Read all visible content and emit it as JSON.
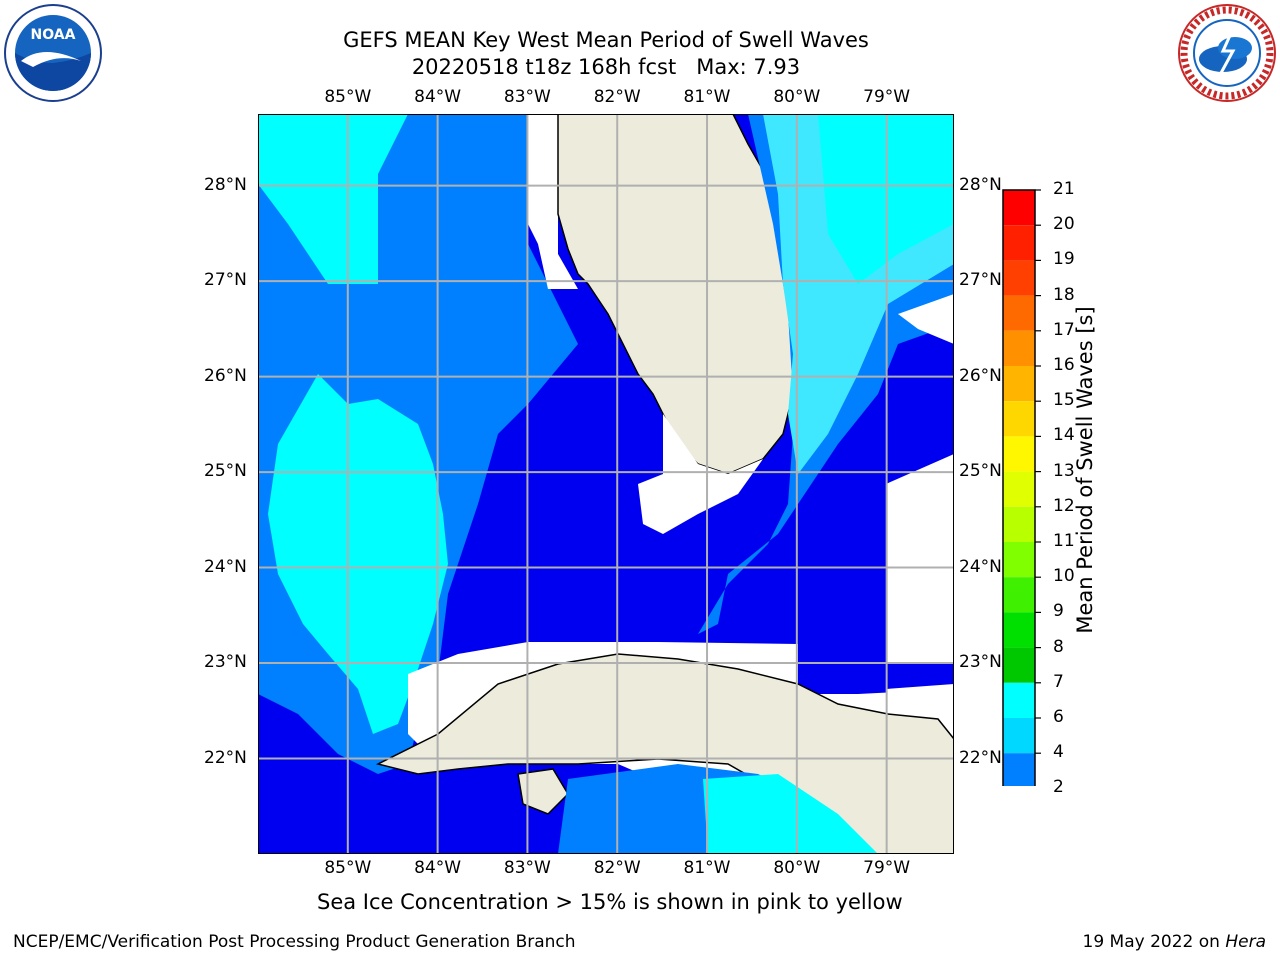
{
  "title": {
    "line1": "GEFS MEAN Key West Mean Period of Swell Waves",
    "line2": "20220518 t18z 168h fcst   Max: 7.93"
  },
  "logos": {
    "left": "NOAA",
    "left_ring_top": "NATIONAL OCEANIC AND ATMOSPHERIC ADMINISTRATION",
    "left_ring_bottom": "U.S. DEPARTMENT OF COMMERCE",
    "right_ring": "NATIONAL WEATHER SERVICE"
  },
  "map": {
    "lon_labels": [
      "85°W",
      "84°W",
      "83°W",
      "82°W",
      "81°W",
      "80°W",
      "79°W"
    ],
    "lat_labels": [
      "28°N",
      "27°N",
      "26°N",
      "25°N",
      "24°N",
      "23°N",
      "22°N"
    ],
    "extent": {
      "lon_min": -86.0,
      "lon_max": -78.25,
      "lat_min": 21.0,
      "lat_max": 28.75
    },
    "grid": true,
    "note": "Sea Ice Concentration > 15% is shown in pink to yellow"
  },
  "colorbar": {
    "label": "Mean Period of Swell Waves [s]",
    "ticks": [
      "21",
      "20",
      "19",
      "18",
      "17",
      "16",
      "15",
      "14",
      "13",
      "12",
      "11",
      "10",
      "9",
      "8",
      "7",
      "6",
      "4",
      "2"
    ],
    "colors": [
      "#ff0000",
      "#ff2000",
      "#ff4000",
      "#ff6a00",
      "#ff9100",
      "#ffb400",
      "#ffd700",
      "#fff700",
      "#e0ff00",
      "#b8ff00",
      "#80ff00",
      "#3ff000",
      "#00e000",
      "#00c800",
      "#53e87a",
      "#90ffd6",
      "#5ff6f6",
      "#00ffff",
      "#00d8ff",
      "#0080ff",
      "#0000f0"
    ],
    "extend": "min"
  },
  "footer": {
    "left": "NCEP/EMC/Verification Post Processing Product Generation Branch",
    "right_date": "19 May 2022 on ",
    "right_host": "Hera"
  }
}
